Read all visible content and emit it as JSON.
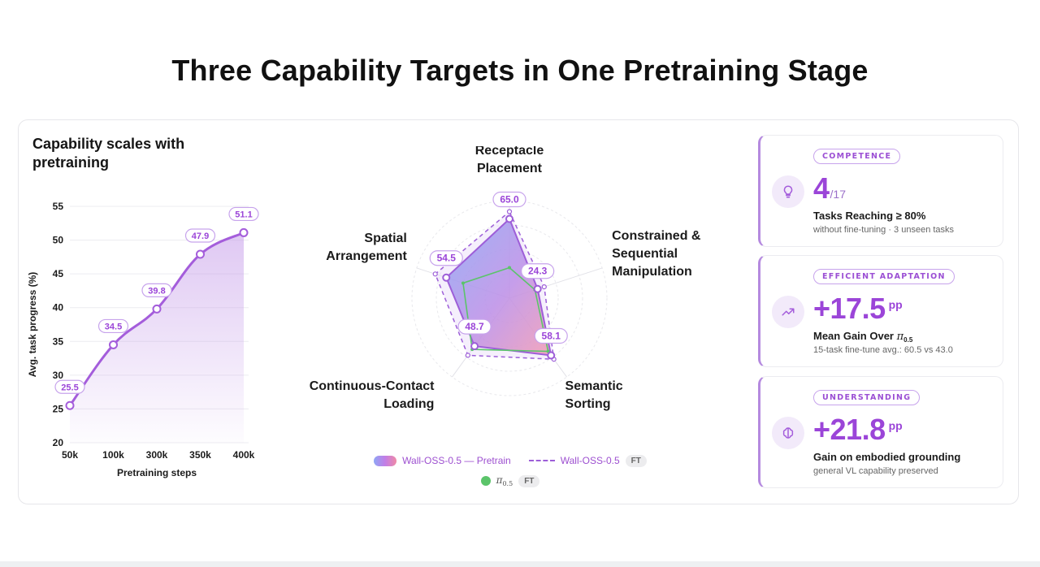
{
  "title": "Three Capability Targets in One Pretraining Stage",
  "line_panel": {
    "title": "Capability scales with pretraining"
  },
  "chart_data": [
    {
      "type": "area",
      "title": "Capability scales with pretraining",
      "xlabel": "Pretraining steps",
      "ylabel": "Avg. task progress (%)",
      "categories": [
        "50k",
        "100k",
        "300k",
        "350k",
        "400k"
      ],
      "values": [
        25.5,
        34.5,
        39.8,
        47.9,
        51.1
      ],
      "data_labels": [
        "25.5",
        "34.5",
        "39.8",
        "47.9",
        "51.1"
      ],
      "ylim": [
        20,
        55
      ],
      "yticks": [
        20,
        25,
        30,
        35,
        40,
        45,
        50,
        55
      ],
      "grid": true,
      "color": "#a45ddb"
    },
    {
      "type": "radar",
      "axes": [
        [
          "Receptacle",
          "Placement"
        ],
        [
          "Constrained &",
          "Sequential",
          "Manipulation"
        ],
        [
          "Semantic",
          "Sorting"
        ],
        [
          "Continuous-Contact",
          "Loading"
        ],
        [
          "Spatial",
          "Arrangement"
        ]
      ],
      "range": [
        0,
        80
      ],
      "series": [
        {
          "name": "Wall-OSS-0.5 — Pretrain",
          "values": [
            65.0,
            24.3,
            58.1,
            48.7,
            54.5
          ],
          "data_labels": [
            "65.0",
            "24.3",
            "58.1",
            "48.7",
            "54.5"
          ],
          "color": "#9d5ed8",
          "style": "gradient-fill"
        },
        {
          "name": "Wall-OSS-0.5",
          "tag": "FT",
          "values": [
            71,
            30,
            62,
            58,
            64
          ],
          "color": "#9d5ed8",
          "style": "dashed"
        },
        {
          "name": "π0.5",
          "tag": "FT",
          "values": [
            25,
            22,
            54,
            52,
            40
          ],
          "color": "#5bc46a",
          "style": "solid"
        }
      ]
    }
  ],
  "legend": {
    "items": [
      {
        "label": "Wall-OSS-0.5 — Pretrain"
      },
      {
        "label": "Wall-OSS-0.5",
        "tag": "FT"
      },
      {
        "label": "π",
        "label_sub": "0.5",
        "tag": "FT"
      }
    ]
  },
  "stats": [
    {
      "tag": "COMPETENCE",
      "icon": "lightbulb-icon",
      "value": "4",
      "value_suffix": "/17",
      "label": "Tasks Reaching ≥ 80%",
      "sub": "without fine-tuning · 3 unseen tasks"
    },
    {
      "tag": "EFFICIENT ADAPTATION",
      "icon": "trending-up-icon",
      "value": "+17.5",
      "unit": "pp",
      "label": "Mean Gain Over ",
      "label_pi": "π",
      "label_pi_sub": "0.5",
      "sub": "15-task fine-tune avg.: 60.5 vs 43.0"
    },
    {
      "tag": "UNDERSTANDING",
      "icon": "brain-icon",
      "value": "+21.8",
      "unit": "pp",
      "label": "Gain on embodied grounding",
      "sub": "general VL capability preserved"
    }
  ],
  "colors": {
    "accent": "#9b45d8",
    "accent_light": "#c7a3ec",
    "green": "#5bc46a",
    "grid": "#e6e6ea"
  }
}
